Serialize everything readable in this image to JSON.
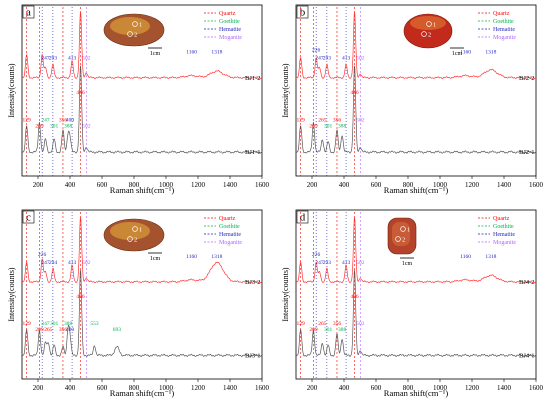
{
  "colors": {
    "quartz": "#ff0000",
    "goethite": "#00b050",
    "hematite": "#1f1fbf",
    "moganite": "#b266ff",
    "upper_trace": "#ff3333",
    "lower_trace": "#555555",
    "axis": "#000000"
  },
  "chart_data": [
    {
      "type": "line",
      "panel": "a",
      "xlabel": "Raman shift(cm⁻¹)",
      "ylabel": "Intensity(counts)",
      "xlim": [
        100,
        1600
      ],
      "xticks": [
        200,
        400,
        600,
        800,
        1000,
        1200,
        1400,
        1600
      ],
      "legend": {
        "placement": "top-right",
        "entries": [
          "Quartz",
          "Goethite",
          "Hematite",
          "Moganite"
        ]
      },
      "markers": {
        "quartz": [
          129,
          209,
          356,
          466
        ],
        "hematite": [
          226,
          293,
          413
        ],
        "moganite": [
          502
        ]
      },
      "series": [
        {
          "name": "BJ1-2",
          "peaks": [
            [
              129,
              0.35
            ],
            [
              226,
              0.35
            ],
            [
              247,
              0.15
            ],
            [
              293,
              0.2
            ],
            [
              413,
              0.25
            ],
            [
              466,
              1.0
            ],
            [
              502,
              0.08
            ],
            [
              1160,
              0.03
            ],
            [
              1318,
              0.1
            ]
          ]
        },
        {
          "name": "BJ1-1",
          "peaks": [
            [
              129,
              0.3
            ],
            [
              209,
              0.35
            ],
            [
              247,
              0.15
            ],
            [
              301,
              0.15
            ],
            [
              356,
              0.25
            ],
            [
              388,
              0.2
            ],
            [
              400,
              0.15
            ],
            [
              466,
              1.0
            ],
            [
              502,
              0.06
            ]
          ]
        }
      ],
      "peak_labels": {
        "upper": [
          {
            "x": 247,
            "text": "247",
            "series": "hematite"
          },
          {
            "x": 293,
            "text": "293",
            "series": "hematite"
          },
          {
            "x": 413,
            "text": "413",
            "series": "hematite"
          },
          {
            "x": 502,
            "text": "502",
            "series": "moganite"
          },
          {
            "x": 1160,
            "text": "1160",
            "series": "hematite"
          },
          {
            "x": 1318,
            "text": "1318",
            "series": "hematite"
          },
          {
            "x": 466,
            "text": "466",
            "series": "quartz"
          }
        ],
        "lower": [
          {
            "x": 129,
            "text": "129",
            "series": "quartz"
          },
          {
            "x": 209,
            "text": "209",
            "series": "quartz"
          },
          {
            "x": 247,
            "text": "247",
            "series": "goethite"
          },
          {
            "x": 301,
            "text": "301",
            "series": "goethite"
          },
          {
            "x": 356,
            "text": "356",
            "series": "quartz"
          },
          {
            "x": 388,
            "text": "388",
            "series": "goethite"
          },
          {
            "x": 400,
            "text": "400",
            "series": "hematite"
          },
          {
            "x": 502,
            "text": "502",
            "series": "moganite"
          }
        ]
      },
      "inset": {
        "scale_label": "1cm",
        "points": [
          "1",
          "2"
        ]
      }
    },
    {
      "type": "line",
      "panel": "b",
      "xlabel": "Raman shift(cm⁻¹)",
      "ylabel": "Intensity(counts)",
      "xlim": [
        100,
        1600
      ],
      "xticks": [
        200,
        400,
        600,
        800,
        1000,
        1200,
        1400,
        1600
      ],
      "legend": {
        "placement": "top-right",
        "entries": [
          "Quartz",
          "Goethite",
          "Hematite",
          "Moganite"
        ]
      },
      "markers": {
        "quartz": [
          129,
          209,
          356,
          466
        ],
        "hematite": [
          226,
          293,
          413
        ],
        "moganite": [
          502
        ]
      },
      "series": [
        {
          "name": "BJ2-2",
          "peaks": [
            [
              129,
              0.3
            ],
            [
              226,
              0.3
            ],
            [
              247,
              0.15
            ],
            [
              293,
              0.2
            ],
            [
              413,
              0.2
            ],
            [
              466,
              1.0
            ],
            [
              502,
              0.06
            ],
            [
              1160,
              0.03
            ],
            [
              1318,
              0.12
            ]
          ]
        },
        {
          "name": "BJ2-1",
          "peaks": [
            [
              129,
              0.3
            ],
            [
              209,
              0.35
            ],
            [
              265,
              0.15
            ],
            [
              301,
              0.12
            ],
            [
              356,
              0.25
            ],
            [
              388,
              0.2
            ],
            [
              466,
              1.0
            ],
            [
              502,
              0.06
            ]
          ]
        }
      ],
      "peak_labels": {
        "upper": [
          {
            "x": 226,
            "text": "226",
            "series": "hematite"
          },
          {
            "x": 247,
            "text": "247",
            "series": "hematite"
          },
          {
            "x": 293,
            "text": "293",
            "series": "hematite"
          },
          {
            "x": 413,
            "text": "413",
            "series": "hematite"
          },
          {
            "x": 502,
            "text": "502",
            "series": "moganite"
          },
          {
            "x": 1160,
            "text": "1160",
            "series": "hematite"
          },
          {
            "x": 1318,
            "text": "1318",
            "series": "hematite"
          },
          {
            "x": 466,
            "text": "466",
            "series": "quartz"
          }
        ],
        "lower": [
          {
            "x": 129,
            "text": "129",
            "series": "quartz"
          },
          {
            "x": 209,
            "text": "209",
            "series": "quartz"
          },
          {
            "x": 265,
            "text": "265",
            "series": "quartz"
          },
          {
            "x": 301,
            "text": "301",
            "series": "goethite"
          },
          {
            "x": 356,
            "text": "356",
            "series": "quartz"
          },
          {
            "x": 388,
            "text": "388",
            "series": "goethite"
          },
          {
            "x": 502,
            "text": "502",
            "series": "moganite"
          }
        ]
      },
      "inset": {
        "scale_label": "1cm",
        "points": [
          "1",
          "2"
        ]
      }
    },
    {
      "type": "line",
      "panel": "c",
      "xlabel": "Raman shift(cm⁻¹)",
      "ylabel": "Intensity(counts)",
      "xlim": [
        100,
        1600
      ],
      "xticks": [
        200,
        400,
        600,
        800,
        1000,
        1200,
        1400,
        1600
      ],
      "legend": {
        "placement": "top-right",
        "entries": [
          "Quartz",
          "Goethite",
          "Hematite",
          "Moganite"
        ]
      },
      "markers": {
        "quartz": [
          129,
          209,
          356,
          466
        ],
        "hematite": [
          226,
          293,
          413
        ],
        "moganite": [
          502
        ]
      },
      "series": [
        {
          "name": "BJ3-2",
          "peaks": [
            [
              129,
              0.3
            ],
            [
              226,
              0.35
            ],
            [
              247,
              0.15
            ],
            [
              294,
              0.2
            ],
            [
              413,
              0.25
            ],
            [
              466,
              1.0
            ],
            [
              502,
              0.06
            ],
            [
              1160,
              0.03
            ],
            [
              1318,
              0.3
            ]
          ]
        },
        {
          "name": "BJ3-1",
          "peaks": [
            [
              129,
              0.3
            ],
            [
              209,
              0.3
            ],
            [
              247,
              0.15
            ],
            [
              265,
              0.15
            ],
            [
              301,
              0.12
            ],
            [
              356,
              0.1
            ],
            [
              388,
              0.3
            ],
            [
              400,
              0.2
            ],
            [
              466,
              1.0
            ],
            [
              553,
              0.12
            ],
            [
              693,
              0.1
            ]
          ]
        }
      ],
      "peak_labels": {
        "upper": [
          {
            "x": 226,
            "text": "226",
            "series": "hematite"
          },
          {
            "x": 247,
            "text": "247",
            "series": "hematite"
          },
          {
            "x": 294,
            "text": "294",
            "series": "hematite"
          },
          {
            "x": 413,
            "text": "413",
            "series": "hematite"
          },
          {
            "x": 502,
            "text": "502",
            "series": "moganite"
          },
          {
            "x": 1160,
            "text": "1160",
            "series": "hematite"
          },
          {
            "x": 1318,
            "text": "1318",
            "series": "hematite"
          },
          {
            "x": 466,
            "text": "466",
            "series": "quartz"
          }
        ],
        "lower": [
          {
            "x": 129,
            "text": "129",
            "series": "quartz"
          },
          {
            "x": 209,
            "text": "209",
            "series": "quartz"
          },
          {
            "x": 247,
            "text": "247",
            "series": "goethite"
          },
          {
            "x": 265,
            "text": "265",
            "series": "quartz"
          },
          {
            "x": 301,
            "text": "301",
            "series": "goethite"
          },
          {
            "x": 356,
            "text": "356",
            "series": "quartz"
          },
          {
            "x": 388,
            "text": "388",
            "series": "goethite"
          },
          {
            "x": 400,
            "text": "400",
            "series": "hematite"
          },
          {
            "x": 553,
            "text": "553",
            "series": "goethite"
          },
          {
            "x": 693,
            "text": "693",
            "series": "goethite"
          }
        ]
      },
      "inset": {
        "scale_label": "1cm",
        "points": [
          "1",
          "2"
        ]
      }
    },
    {
      "type": "line",
      "panel": "d",
      "xlabel": "Raman shift(cm⁻¹)",
      "ylabel": "Intensity(counts)",
      "xlim": [
        100,
        1600
      ],
      "xticks": [
        200,
        400,
        600,
        800,
        1000,
        1200,
        1400,
        1600
      ],
      "legend": {
        "placement": "top-right",
        "entries": [
          "Quartz",
          "Goethite",
          "Hematite",
          "Moganite"
        ]
      },
      "markers": {
        "quartz": [
          129,
          209,
          356,
          466
        ],
        "hematite": [
          226,
          293,
          413
        ],
        "moganite": [
          502
        ]
      },
      "series": [
        {
          "name": "BJ4-2",
          "peaks": [
            [
              129,
              0.3
            ],
            [
              226,
              0.3
            ],
            [
              247,
              0.15
            ],
            [
              293,
              0.2
            ],
            [
              413,
              0.25
            ],
            [
              466,
              1.0
            ],
            [
              502,
              0.06
            ],
            [
              1160,
              0.03
            ],
            [
              1318,
              0.1
            ]
          ]
        },
        {
          "name": "BJ4-1",
          "peaks": [
            [
              129,
              0.3
            ],
            [
              209,
              0.3
            ],
            [
              265,
              0.15
            ],
            [
              301,
              0.12
            ],
            [
              356,
              0.25
            ],
            [
              388,
              0.2
            ],
            [
              466,
              1.0
            ],
            [
              502,
              0.06
            ]
          ]
        }
      ],
      "peak_labels": {
        "upper": [
          {
            "x": 226,
            "text": "226",
            "series": "hematite"
          },
          {
            "x": 247,
            "text": "247",
            "series": "hematite"
          },
          {
            "x": 293,
            "text": "293",
            "series": "hematite"
          },
          {
            "x": 413,
            "text": "413",
            "series": "hematite"
          },
          {
            "x": 502,
            "text": "502",
            "series": "moganite"
          },
          {
            "x": 1160,
            "text": "1160",
            "series": "hematite"
          },
          {
            "x": 1318,
            "text": "1318",
            "series": "hematite"
          },
          {
            "x": 466,
            "text": "466",
            "series": "quartz"
          }
        ],
        "lower": [
          {
            "x": 129,
            "text": "129",
            "series": "quartz"
          },
          {
            "x": 209,
            "text": "209",
            "series": "quartz"
          },
          {
            "x": 265,
            "text": "265",
            "series": "quartz"
          },
          {
            "x": 301,
            "text": "301",
            "series": "goethite"
          },
          {
            "x": 356,
            "text": "356",
            "series": "quartz"
          },
          {
            "x": 388,
            "text": "388",
            "series": "goethite"
          },
          {
            "x": 502,
            "text": "502",
            "series": "moganite"
          }
        ]
      },
      "inset": {
        "scale_label": "1cm",
        "points": [
          "1",
          "2"
        ]
      }
    }
  ]
}
